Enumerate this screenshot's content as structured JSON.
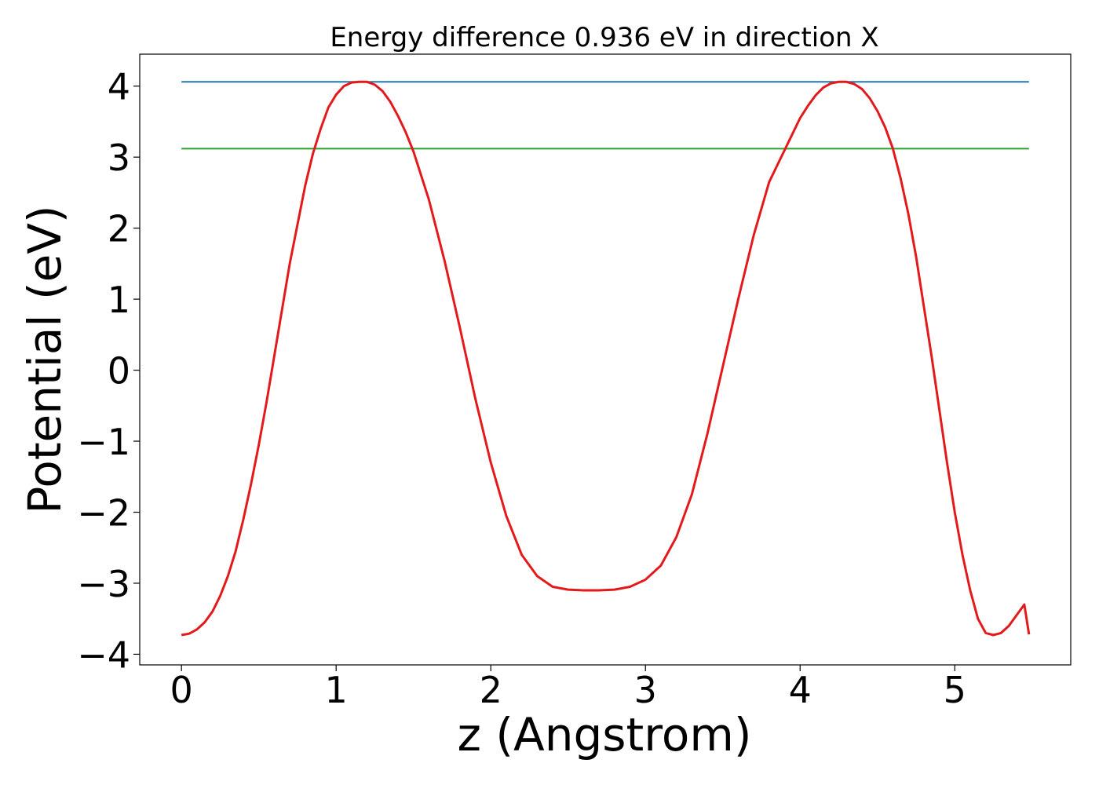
{
  "chart_data": {
    "type": "line",
    "title": "Energy difference 0.936 eV in direction X",
    "xlabel": "z (Angstrom)",
    "ylabel": "Potential (eV)",
    "xlim": [
      -0.27,
      5.75
    ],
    "ylim": [
      -4.15,
      4.45
    ],
    "x_ticks": [
      0,
      1,
      2,
      3,
      4,
      5
    ],
    "x_tick_labels": [
      "0",
      "1",
      "2",
      "3",
      "4",
      "5"
    ],
    "y_ticks": [
      -4,
      -3,
      -2,
      -1,
      0,
      1,
      2,
      3,
      4
    ],
    "y_tick_labels": [
      "−4",
      "−3",
      "−2",
      "−1",
      "0",
      "1",
      "2",
      "3",
      "4"
    ],
    "grid": false,
    "series": [
      {
        "color": "#1f77b4",
        "kind": "hline",
        "x": [
          0,
          5.48
        ],
        "y": [
          4.06,
          4.06
        ]
      },
      {
        "color": "#2ca02c",
        "kind": "hline",
        "x": [
          0,
          5.48
        ],
        "y": [
          3.12,
          3.12
        ]
      },
      {
        "color": "#e31a1c",
        "kind": "curve",
        "x": [
          0,
          0.05,
          0.1,
          0.15,
          0.2,
          0.25,
          0.3,
          0.35,
          0.4,
          0.45,
          0.5,
          0.55,
          0.6,
          0.65,
          0.7,
          0.75,
          0.8,
          0.85,
          0.9,
          0.95,
          1.0,
          1.05,
          1.1,
          1.15,
          1.2,
          1.25,
          1.3,
          1.35,
          1.4,
          1.45,
          1.5,
          1.6,
          1.7,
          1.8,
          1.9,
          2.0,
          2.1,
          2.2,
          2.3,
          2.4,
          2.5,
          2.6,
          2.7,
          2.8,
          2.9,
          3.0,
          3.1,
          3.2,
          3.3,
          3.4,
          3.5,
          3.6,
          3.7,
          3.8,
          3.9,
          4.0,
          4.05,
          4.1,
          4.15,
          4.2,
          4.25,
          4.3,
          4.35,
          4.4,
          4.45,
          4.5,
          4.55,
          4.6,
          4.65,
          4.7,
          4.75,
          4.8,
          4.85,
          4.9,
          4.95,
          5.0,
          5.05,
          5.1,
          5.15,
          5.2,
          5.25,
          5.3,
          5.35,
          5.4,
          5.45,
          5.48
        ],
        "y": [
          -3.73,
          -3.71,
          -3.65,
          -3.55,
          -3.4,
          -3.18,
          -2.9,
          -2.55,
          -2.1,
          -1.6,
          -1.05,
          -0.45,
          0.2,
          0.85,
          1.5,
          2.05,
          2.6,
          3.05,
          3.4,
          3.7,
          3.88,
          4.0,
          4.05,
          4.06,
          4.06,
          4.02,
          3.93,
          3.78,
          3.58,
          3.35,
          3.08,
          2.4,
          1.55,
          0.6,
          -0.4,
          -1.3,
          -2.05,
          -2.6,
          -2.9,
          -3.05,
          -3.09,
          -3.1,
          -3.1,
          -3.09,
          -3.05,
          -2.95,
          -2.75,
          -2.35,
          -1.75,
          -0.9,
          0.05,
          1.0,
          1.9,
          2.65,
          3.1,
          3.55,
          3.72,
          3.87,
          3.98,
          4.04,
          4.06,
          4.06,
          4.03,
          3.96,
          3.83,
          3.65,
          3.42,
          3.12,
          2.7,
          2.2,
          1.6,
          0.9,
          0.2,
          -0.55,
          -1.3,
          -2.0,
          -2.6,
          -3.1,
          -3.5,
          -3.7,
          -3.73,
          -3.7,
          -3.6,
          -3.45,
          -3.3,
          -3.72
        ]
      }
    ]
  }
}
